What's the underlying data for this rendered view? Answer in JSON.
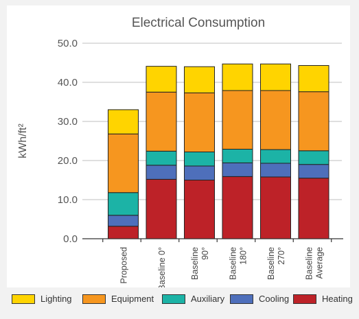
{
  "chart_data": {
    "type": "bar",
    "stacked": true,
    "title": "Electrical Consumption",
    "ylabel": "kWh/ft²",
    "xlabel": "",
    "ylim": [
      0,
      50
    ],
    "yticks": [
      "0.0",
      "10.0",
      "20.0",
      "30.0",
      "40.0",
      "50.0"
    ],
    "grid": true,
    "legend_position": "bottom",
    "categories": [
      [
        "Proposed"
      ],
      [
        "Baseline 0°"
      ],
      [
        "Baseline",
        "90°"
      ],
      [
        "Baseline",
        "180°"
      ],
      [
        "Baseline",
        "270°"
      ],
      [
        "Baseline",
        "Average"
      ]
    ],
    "series": [
      {
        "name": "Heating",
        "color": "#bd2228",
        "values": [
          3.2,
          15.2,
          15.0,
          15.9,
          15.8,
          15.5
        ]
      },
      {
        "name": "Cooling",
        "color": "#4e6fbb",
        "values": [
          2.8,
          3.6,
          3.6,
          3.5,
          3.5,
          3.5
        ]
      },
      {
        "name": "Auxiliary",
        "color": "#1cb3a6",
        "values": [
          5.8,
          3.6,
          3.6,
          3.5,
          3.5,
          3.5
        ]
      },
      {
        "name": "Equipment",
        "color": "#f6961f",
        "values": [
          15.0,
          15.1,
          15.1,
          15.0,
          15.1,
          15.1
        ]
      },
      {
        "name": "Lighting",
        "color": "#ffd400",
        "values": [
          6.2,
          6.6,
          6.7,
          6.8,
          6.8,
          6.7
        ]
      }
    ]
  },
  "legend": [
    {
      "label": "Lighting",
      "color": "#ffd400"
    },
    {
      "label": "Equipment",
      "color": "#f6961f"
    },
    {
      "label": "Auxiliary",
      "color": "#1cb3a6"
    },
    {
      "label": "Cooling",
      "color": "#4e6fbb"
    },
    {
      "label": "Heating",
      "color": "#bd2228"
    }
  ]
}
